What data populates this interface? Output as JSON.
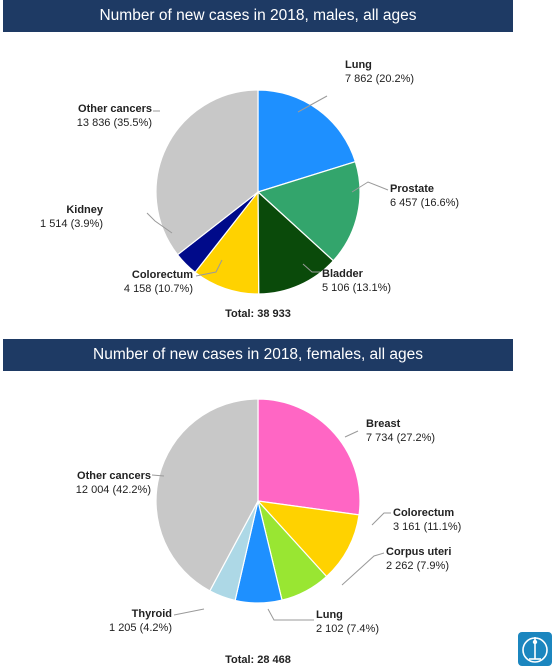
{
  "chart_data": [
    {
      "type": "pie",
      "title": "Number of new cases in 2018, males, all ages",
      "total_label": "Total: 38 933",
      "slices": [
        {
          "name": "Lung",
          "value": 7862,
          "value_label": "7 862 (20.2%)",
          "color": "#1e90ff"
        },
        {
          "name": "Prostate",
          "value": 6457,
          "value_label": "6 457 (16.6%)",
          "color": "#33a56c"
        },
        {
          "name": "Bladder",
          "value": 5106,
          "value_label": "5 106 (13.1%)",
          "color": "#0a4a0a"
        },
        {
          "name": "Colorectum",
          "value": 4158,
          "value_label": "4 158 (10.7%)",
          "color": "#ffd200"
        },
        {
          "name": "Kidney",
          "value": 1514,
          "value_label": "1 514 (3.9%)",
          "color": "#000a8a"
        },
        {
          "name": "Other cancers",
          "value": 13836,
          "value_label": "13 836 (35.5%)",
          "color": "#c8c8c8"
        }
      ]
    },
    {
      "type": "pie",
      "title": "Number of new cases in 2018, females, all ages",
      "total_label": "Total: 28 468",
      "slices": [
        {
          "name": "Breast",
          "value": 7734,
          "value_label": "7 734 (27.2%)",
          "color": "#ff66c4"
        },
        {
          "name": "Colorectum",
          "value": 3161,
          "value_label": "3 161 (11.1%)",
          "color": "#ffd200"
        },
        {
          "name": "Corpus uteri",
          "value": 2262,
          "value_label": "2 262 (7.9%)",
          "color": "#99e632"
        },
        {
          "name": "Lung",
          "value": 2102,
          "value_label": "2 102 (7.4%)",
          "color": "#1e90ff"
        },
        {
          "name": "Thyroid",
          "value": 1205,
          "value_label": "1 205 (4.2%)",
          "color": "#add8e6"
        },
        {
          "name": "Other cancers",
          "value": 12004,
          "value_label": "12 004 (42.2%)",
          "color": "#c8c8c8"
        }
      ]
    }
  ]
}
